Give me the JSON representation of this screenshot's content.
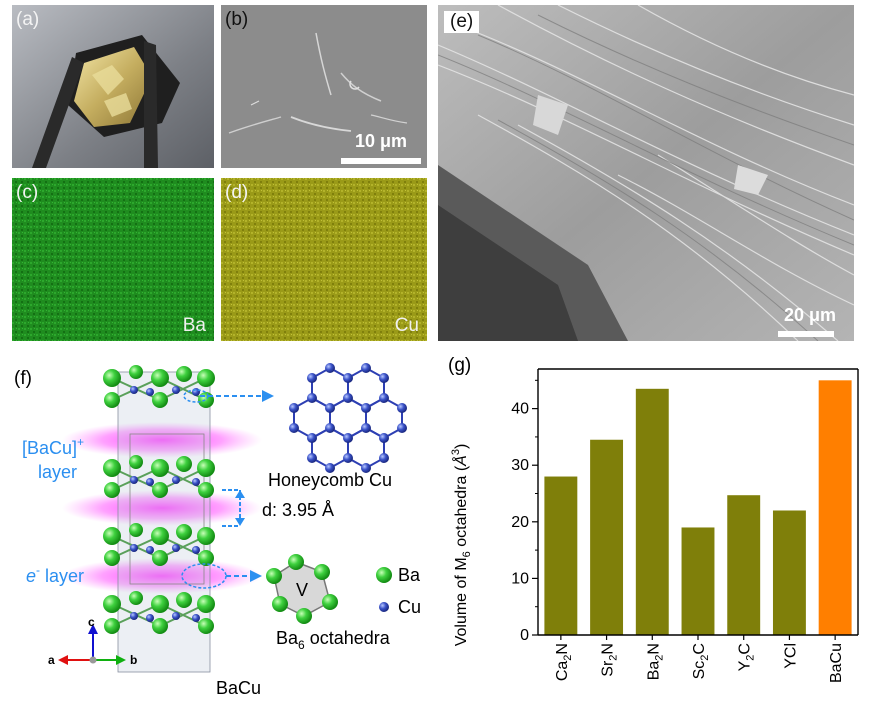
{
  "panels": {
    "a": {
      "label": "(a)"
    },
    "b": {
      "label": "(b)",
      "scale": "10 μm"
    },
    "c": {
      "label": "(c)",
      "element": "Ba",
      "color": "#1f8c1f"
    },
    "d": {
      "label": "(d)",
      "element": "Cu",
      "color": "#9a9a18"
    },
    "e": {
      "label": "(e)",
      "scale": "20 μm"
    },
    "f": {
      "label": "(f)",
      "layer1": "[BaCu]",
      "layer1_sup": "+",
      "layer1_word": "layer",
      "layer2_pre": "e",
      "layer2_sup": "-",
      "layer2_post": " layer",
      "honeycomb": "Honeycomb Cu",
      "spacing": "d: 3.95 Å",
      "octa_letter": "V",
      "octa_pre": "Ba",
      "octa_sub": "6",
      "octa_post": " octahedra",
      "legend_ba": "Ba",
      "legend_cu": "Cu",
      "axis_a": "a",
      "axis_b": "b",
      "axis_c": "c",
      "compound": "BaCu"
    },
    "g": {
      "label": "(g)"
    }
  },
  "chart_data": {
    "type": "bar",
    "categories": [
      "Ca2N",
      "Sr2N",
      "Ba2N",
      "Sc2C",
      "Y2C",
      "YCl",
      "BaCu"
    ],
    "category_labels": [
      {
        "main": "Ca",
        "sub": "2",
        "tail": "N"
      },
      {
        "main": "Sr",
        "sub": "2",
        "tail": "N"
      },
      {
        "main": "Ba",
        "sub": "2",
        "tail": "N"
      },
      {
        "main": "Sc",
        "sub": "2",
        "tail": "C"
      },
      {
        "main": "Y",
        "sub": "2",
        "tail": "C"
      },
      {
        "main": "YCl",
        "sub": "",
        "tail": ""
      },
      {
        "main": "BaCu",
        "sub": "",
        "tail": ""
      }
    ],
    "values": [
      28,
      34.5,
      43.5,
      19,
      24.7,
      22,
      45
    ],
    "colors": [
      "#7f7f0a",
      "#7f7f0a",
      "#7f7f0a",
      "#7f7f0a",
      "#7f7f0a",
      "#7f7f0a",
      "#ff7f00"
    ],
    "ylabel": {
      "pre": "Volume of M",
      "sub": "6",
      "mid": " octahedra (",
      "unit": "Å",
      "sup": "3",
      "post": ")"
    },
    "ylim": [
      0,
      47
    ],
    "yticks": [
      0,
      10,
      20,
      30,
      40
    ],
    "grid": false
  }
}
